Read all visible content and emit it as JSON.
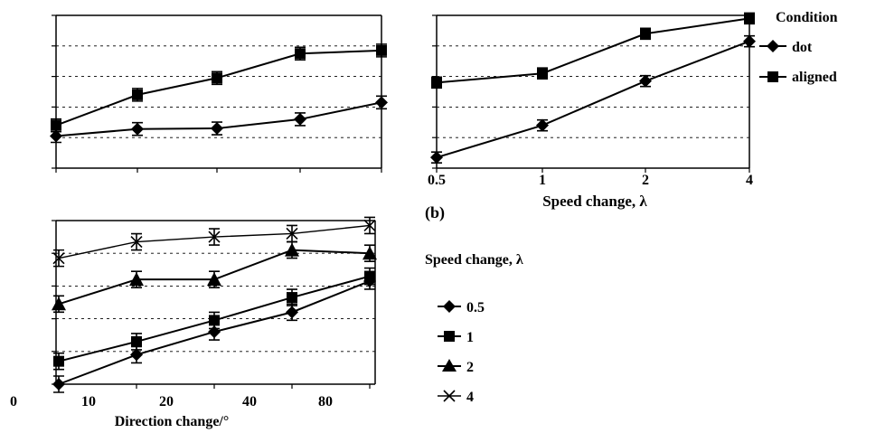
{
  "chart_data": [
    {
      "id": "a",
      "type": "line",
      "title": "",
      "panel_label": "",
      "xlabel": "",
      "ylabel": "",
      "x": [
        1,
        2,
        3,
        4,
        5
      ],
      "xtick_labels": [],
      "grid": "dashed horizontal",
      "series": [
        {
          "name": "dot",
          "marker": "diamond",
          "values": [
            1.05,
            1.28,
            1.3,
            1.6,
            2.15
          ]
        },
        {
          "name": "aligned",
          "marker": "square",
          "values": [
            1.4,
            2.4,
            2.95,
            3.75,
            3.85
          ]
        }
      ]
    },
    {
      "id": "b",
      "type": "line",
      "title": "",
      "panel_label": "(b)",
      "xlabel": "Speed change, λ",
      "ylabel": "",
      "x": [
        0.5,
        1,
        2,
        4
      ],
      "xtick_labels": [
        "0.5",
        "1",
        "2",
        "4"
      ],
      "xscale": "log",
      "grid": "dashed horizontal",
      "legend_title": "Condition",
      "legend_position": "right",
      "series": [
        {
          "name": "dot",
          "marker": "diamond",
          "values": [
            0.35,
            1.4,
            2.85,
            4.15
          ]
        },
        {
          "name": "aligned",
          "marker": "square",
          "values": [
            2.8,
            3.1,
            4.4,
            4.9
          ]
        }
      ]
    },
    {
      "id": "c",
      "type": "line",
      "title": "",
      "panel_label": "",
      "xlabel": "Direction change/°",
      "ylabel": "",
      "x": [
        5,
        15,
        30,
        55,
        90
      ],
      "xtick_labels": [
        "0",
        "10",
        "20",
        "40",
        "80"
      ],
      "grid": "dashed horizontal",
      "legend_title": "Speed change, λ",
      "legend_position": "right",
      "series": [
        {
          "name": "0.5",
          "marker": "diamond",
          "values": [
            0.0,
            0.9,
            1.6,
            2.2,
            3.15
          ]
        },
        {
          "name": "1",
          "marker": "square",
          "values": [
            0.7,
            1.3,
            1.95,
            2.65,
            3.3
          ]
        },
        {
          "name": "2",
          "marker": "triangle",
          "values": [
            2.45,
            3.2,
            3.2,
            4.1,
            4.0
          ]
        },
        {
          "name": "4",
          "marker": "x",
          "values": [
            3.85,
            4.35,
            4.5,
            4.6,
            4.85
          ]
        }
      ]
    }
  ]
}
